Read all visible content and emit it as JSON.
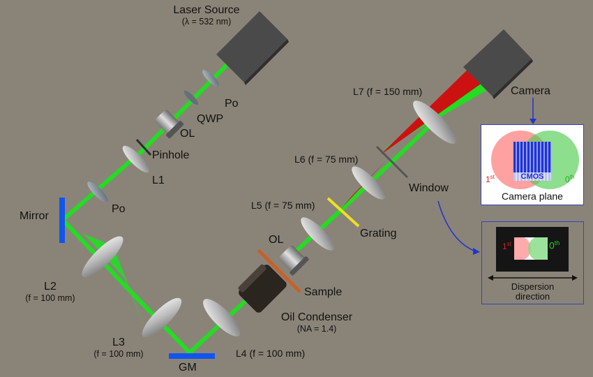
{
  "components": {
    "laser_source": {
      "name": "Laser Source",
      "param": "(λ = 532 nm)"
    },
    "po_top": "Po",
    "qwp": "QWP",
    "ol_top": "OL",
    "pinhole": "Pinhole",
    "l1": "L1",
    "po_left": "Po",
    "mirror": "Mirror",
    "l2": {
      "name": "L2",
      "param": "(f = 100 mm)"
    },
    "l3": {
      "name": "L3",
      "param": "(f = 100 mm)"
    },
    "gm": "GM",
    "l4": "L4 (f = 100 mm)",
    "oil_condenser": {
      "name": "Oil Condenser",
      "param": "(NA = 1.4)"
    },
    "sample": "Sample",
    "ol_mid": "OL",
    "l5": "L5 (f = 75 mm)",
    "grating": "Grating",
    "l6": "L6 (f = 75 mm)",
    "window": "Window",
    "l7": "L7 (f = 150 mm)",
    "camera": "Camera"
  },
  "camera_plane_panel": {
    "first_order": "1",
    "first_order_sup": "st",
    "zero_order": "0",
    "zero_order_sup": "th",
    "sensor": "CMOS",
    "caption": "Camera plane"
  },
  "window_panel": {
    "first_order": "1",
    "first_order_sup": "st",
    "zero_order": "0",
    "zero_order_sup": "th",
    "caption_line1": "Dispersion",
    "caption_line2": "direction"
  },
  "colors": {
    "background": "#8a8478",
    "beam_green": "#22dd22",
    "beam_red": "#cc1111",
    "mirror_blue": "#1155ee",
    "grating_yellow": "#f0e020",
    "sample_orange": "#c8602a",
    "panel_border": "#3344bb",
    "zero_order_text": "#22aa22",
    "first_order_text": "#dd2222",
    "sensor_blue": "#2233cc"
  }
}
